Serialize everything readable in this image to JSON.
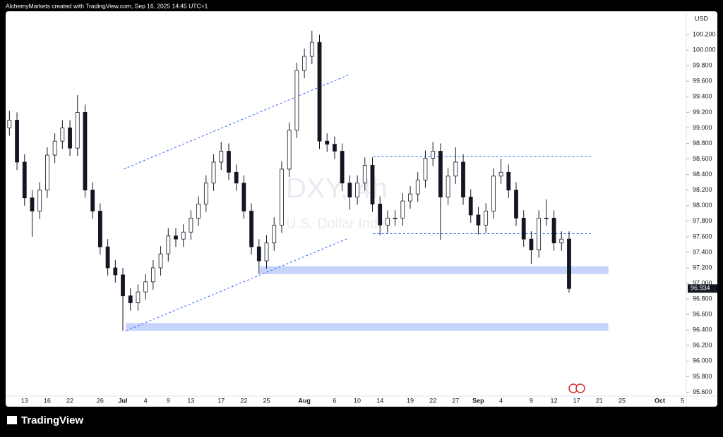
{
  "chart_data": {
    "type": "candlestick",
    "caption": "AlchemyMarkets created with TradingView.com, Sep 16, 2025 14:45 UTC+1",
    "title": "DXY, 4h",
    "subtitle": "U.S. Dollar Index",
    "y_label": "USD",
    "brand": "TradingView",
    "up_color": "#ffffff",
    "down_color": "#131722",
    "zone_color": "#c6d4fb",
    "line_color": "#2962ff",
    "categories": [
      null,
      null,
      "13",
      null,
      null,
      "16",
      null,
      null,
      "22",
      null,
      null,
      null,
      "26",
      null,
      null,
      "Jul",
      null,
      null,
      "4",
      null,
      null,
      "9",
      null,
      null,
      "13",
      null,
      null,
      null,
      "17",
      null,
      null,
      "22",
      null,
      null,
      "25",
      null,
      null,
      null,
      null,
      "Aug",
      null,
      null,
      null,
      "6",
      null,
      null,
      "10",
      null,
      null,
      "14",
      null,
      null,
      null,
      "19",
      null,
      null,
      "22",
      null,
      null,
      "27",
      null,
      null,
      "Sep",
      null,
      null,
      "4",
      null,
      null,
      null,
      "9",
      null,
      null,
      "12",
      null,
      null,
      "17",
      null,
      null,
      "21",
      null,
      null,
      "25",
      null,
      null,
      null,
      null,
      "Oct",
      null,
      null,
      "5"
    ],
    "open": [
      99.0,
      99.1,
      98.56,
      98.1,
      97.93,
      98.2,
      98.65,
      98.83,
      99.0,
      98.74,
      99.2,
      98.2,
      97.93,
      97.47,
      97.2,
      97.11,
      96.84,
      96.75,
      96.89,
      97.02,
      97.2,
      97.38,
      97.61,
      97.57,
      97.66,
      97.84,
      98.02,
      98.29,
      98.56,
      98.7,
      98.43,
      98.29,
      97.93,
      97.47,
      97.29,
      97.52,
      97.75,
      98.47,
      98.97,
      99.74,
      99.92,
      100.1,
      98.83,
      98.79,
      98.7,
      98.29,
      98.11,
      98.29,
      98.52,
      98.02,
      97.75,
      97.84,
      97.84,
      98.06,
      98.15,
      98.33,
      98.61,
      98.7,
      98.11,
      98.38,
      98.56,
      98.11,
      97.88,
      97.75,
      97.93,
      98.38,
      98.43,
      98.2,
      97.84,
      97.57,
      97.43,
      97.84,
      97.84,
      97.52,
      97.57,
      null,
      null,
      null,
      null,
      null,
      null,
      null,
      null,
      null,
      null,
      null,
      null,
      null,
      null,
      null
    ],
    "high": [
      99.22,
      99.2,
      98.66,
      98.2,
      98.3,
      98.75,
      98.93,
      99.1,
      99.1,
      99.42,
      99.3,
      98.3,
      98.03,
      97.57,
      97.3,
      97.2,
      96.94,
      96.99,
      97.12,
      97.3,
      97.48,
      97.71,
      97.71,
      97.76,
      97.94,
      98.12,
      98.39,
      98.66,
      98.82,
      98.8,
      98.53,
      98.39,
      98.03,
      97.57,
      97.62,
      97.85,
      98.57,
      99.07,
      99.84,
      100.02,
      100.25,
      100.2,
      98.93,
      98.89,
      98.8,
      98.39,
      98.39,
      98.62,
      98.62,
      98.12,
      97.94,
      97.94,
      98.16,
      98.25,
      98.43,
      98.71,
      98.82,
      98.8,
      98.48,
      98.75,
      98.66,
      98.21,
      97.98,
      98.03,
      98.48,
      98.6,
      98.53,
      98.3,
      97.94,
      97.67,
      97.94,
      98.08,
      97.94,
      97.67,
      97.67,
      null,
      null,
      null,
      null,
      null,
      null,
      null,
      null,
      null,
      null,
      null,
      null,
      null,
      null,
      null
    ],
    "low": [
      98.9,
      98.46,
      98.0,
      97.6,
      97.83,
      98.1,
      98.55,
      98.73,
      98.64,
      98.64,
      98.1,
      97.83,
      97.37,
      97.1,
      97.01,
      96.39,
      96.65,
      96.65,
      96.79,
      96.92,
      97.1,
      97.28,
      97.47,
      97.47,
      97.56,
      97.74,
      97.92,
      98.19,
      98.46,
      98.33,
      98.19,
      97.83,
      97.37,
      97.12,
      97.19,
      97.42,
      97.65,
      98.37,
      98.87,
      99.64,
      99.82,
      98.73,
      98.69,
      98.6,
      98.19,
      97.95,
      98.01,
      98.19,
      97.92,
      97.62,
      97.65,
      97.74,
      97.74,
      97.96,
      98.05,
      98.23,
      98.51,
      97.56,
      98.01,
      98.28,
      98.01,
      97.78,
      97.63,
      97.65,
      97.83,
      98.28,
      98.1,
      97.74,
      97.47,
      97.25,
      97.33,
      97.74,
      97.42,
      97.42,
      96.88,
      null,
      null,
      null,
      null,
      null,
      null,
      null,
      null,
      null,
      null,
      null,
      null,
      null,
      null,
      null
    ],
    "close": [
      99.1,
      98.56,
      98.1,
      97.93,
      98.2,
      98.65,
      98.83,
      99.0,
      98.74,
      99.2,
      98.2,
      97.93,
      97.47,
      97.2,
      97.11,
      96.84,
      96.75,
      96.89,
      97.02,
      97.2,
      97.38,
      97.61,
      97.57,
      97.66,
      97.84,
      98.02,
      98.29,
      98.56,
      98.7,
      98.43,
      98.29,
      97.93,
      97.47,
      97.29,
      97.52,
      97.75,
      98.47,
      98.97,
      99.74,
      99.92,
      100.1,
      98.83,
      98.79,
      98.7,
      98.29,
      98.11,
      98.29,
      98.52,
      98.02,
      97.75,
      97.84,
      97.84,
      98.06,
      98.15,
      98.33,
      98.61,
      98.7,
      98.11,
      98.38,
      98.56,
      98.11,
      97.88,
      97.75,
      97.93,
      98.38,
      98.43,
      98.2,
      97.84,
      97.57,
      97.43,
      97.84,
      97.84,
      97.52,
      97.57,
      96.934,
      null,
      null,
      null,
      null,
      null,
      null,
      null,
      null,
      null,
      null,
      null,
      null,
      null,
      null,
      null
    ],
    "ylim": [
      95.55,
      100.5
    ],
    "yticks": [
      {
        "value": 95.6,
        "label": "95.600"
      },
      {
        "value": 95.8,
        "label": "95.800"
      },
      {
        "value": 96.0,
        "label": "96.000"
      },
      {
        "value": 96.2,
        "label": "96.200"
      },
      {
        "value": 96.4,
        "label": "96.400"
      },
      {
        "value": 96.6,
        "label": "96.600"
      },
      {
        "value": 96.8,
        "label": "96.800"
      },
      {
        "value": 97.0,
        "label": "97.000"
      },
      {
        "value": 97.2,
        "label": "97.200"
      },
      {
        "value": 97.4,
        "label": "97.400"
      },
      {
        "value": 97.6,
        "label": "97.600"
      },
      {
        "value": 97.8,
        "label": "97.800"
      },
      {
        "value": 98.0,
        "label": "98.000"
      },
      {
        "value": 98.2,
        "label": "98.200"
      },
      {
        "value": 98.4,
        "label": "98.400"
      },
      {
        "value": 98.6,
        "label": "98.600"
      },
      {
        "value": 98.8,
        "label": "98.800"
      },
      {
        "value": 99.0,
        "label": "99.000"
      },
      {
        "value": 99.2,
        "label": "99.200"
      },
      {
        "value": 99.4,
        "label": "99.400"
      },
      {
        "value": 99.6,
        "label": "99.600"
      },
      {
        "value": 99.8,
        "label": "99.800"
      },
      {
        "value": 100.0,
        "label": "100.000"
      },
      {
        "value": 100.2,
        "label": "100.200"
      }
    ],
    "zones": [
      {
        "x": [
          33.1,
          79.2
        ],
        "y": [
          97.12,
          97.22
        ]
      },
      {
        "x": [
          15.4,
          79.2
        ],
        "y": [
          96.39,
          96.49
        ]
      }
    ],
    "trendlines": [
      {
        "x": [
          15.4,
          44.8
        ],
        "y": [
          96.39,
          97.58
        ]
      },
      {
        "x": [
          15.1,
          44.8
        ],
        "y": [
          98.47,
          99.68
        ]
      },
      {
        "x": [
          48.1,
          76.9
        ],
        "y": [
          98.63,
          98.63
        ]
      },
      {
        "x": [
          48.1,
          76.9
        ],
        "y": [
          97.64,
          97.64
        ]
      }
    ]
  }
}
